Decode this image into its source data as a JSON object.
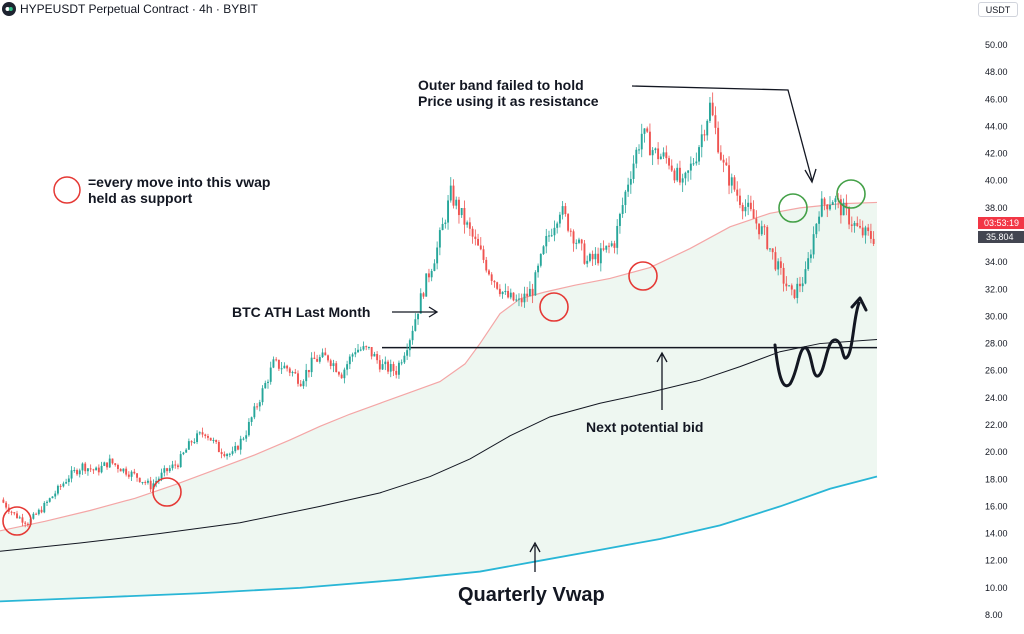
{
  "header": {
    "title": "HYPEUSDT Perpetual Contract · 4h · BYBIT",
    "currency": "USDT"
  },
  "price_tags": {
    "countdown": "03:53:19",
    "last_value": "35.804",
    "countdown_color": "#f23645",
    "last_color": "#434651"
  },
  "annotations": {
    "outer_band_line1": "Outer band failed to hold",
    "outer_band_line2": "Price using it as resistance",
    "legend_line1": "=every move into this vwap",
    "legend_line2": "held as support",
    "btc_ath": "BTC ATH Last Month",
    "next_bid": "Next potential bid",
    "quarterly_vwap": "Quarterly Vwap"
  },
  "colors": {
    "up": "#26a69a",
    "down": "#ef5350",
    "outer_band": "#f4a6a6",
    "vwap": "#131722",
    "quarterly_vwap": "#29b6d6",
    "band_fill": "#eef7f1",
    "support_circle": "#e53935",
    "resistance_circle": "#43a047",
    "level_line": "#131722"
  },
  "chart_data": {
    "type": "candlestick",
    "title": "HYPEUSDT Perpetual Contract · 4h · BYBIT",
    "ylim": [
      8,
      51
    ],
    "y_ticks": [
      8,
      10,
      12,
      14,
      16,
      18,
      20,
      22,
      24,
      26,
      28,
      30,
      32,
      34,
      36,
      38,
      40,
      42,
      44,
      46,
      48,
      50
    ],
    "grid": false,
    "horizontal_level": 27.7,
    "price_path": [
      16.5,
      15.4,
      14.8,
      15.8,
      17.0,
      18.2,
      19.0,
      18.6,
      19.3,
      18.7,
      18.2,
      17.5,
      18.5,
      19.2,
      20.8,
      21.5,
      20.2,
      19.8,
      21.5,
      24.0,
      26.5,
      26.2,
      25.3,
      26.8,
      27.0,
      25.8,
      27.6,
      27.5,
      26.3,
      26.0,
      28.5,
      32.0,
      35.0,
      39.0,
      37.0,
      35.0,
      33.0,
      31.5,
      31.0,
      32.0,
      35.5,
      38.0,
      36.0,
      34.0,
      34.5,
      35.5,
      40.0,
      43.5,
      42.0,
      41.5,
      39.5,
      42.0,
      45.5,
      41.0,
      39.0,
      37.5,
      36.0,
      33.5,
      31.5,
      33.0,
      38.0,
      38.7,
      37.5,
      36.2,
      35.8
    ],
    "series": [
      {
        "name": "",
        "points": [
          [
            0,
            14.2
          ],
          [
            45,
            14.9
          ],
          [
            90,
            15.7
          ],
          [
            135,
            16.6
          ],
          [
            175,
            17.6
          ],
          [
            215,
            18.7
          ],
          [
            255,
            19.8
          ],
          [
            290,
            20.9
          ],
          [
            320,
            21.9
          ],
          [
            350,
            22.8
          ],
          [
            380,
            23.6
          ],
          [
            410,
            24.4
          ],
          [
            440,
            25.2
          ],
          [
            465,
            26.5
          ],
          [
            480,
            28.0
          ],
          [
            500,
            30.2
          ],
          [
            520,
            31.3
          ],
          [
            545,
            31.8
          ],
          [
            575,
            32.3
          ],
          [
            610,
            32.8
          ],
          [
            650,
            33.6
          ],
          [
            690,
            35.0
          ],
          [
            730,
            36.6
          ],
          [
            770,
            37.6
          ],
          [
            800,
            38.0
          ],
          [
            840,
            38.3
          ],
          [
            877,
            38.4
          ]
        ]
      },
      {
        "name": "",
        "points": [
          [
            0,
            12.7
          ],
          [
            80,
            13.3
          ],
          [
            160,
            14.0
          ],
          [
            240,
            14.8
          ],
          [
            320,
            16.0
          ],
          [
            380,
            17.0
          ],
          [
            430,
            18.2
          ],
          [
            470,
            19.5
          ],
          [
            510,
            21.2
          ],
          [
            550,
            22.6
          ],
          [
            600,
            23.6
          ],
          [
            650,
            24.4
          ],
          [
            700,
            25.3
          ],
          [
            740,
            26.3
          ],
          [
            780,
            27.4
          ],
          [
            820,
            28.0
          ],
          [
            877,
            28.3
          ]
        ]
      },
      {
        "name": "",
        "points": [
          [
            0,
            9.0
          ],
          [
            100,
            9.3
          ],
          [
            200,
            9.6
          ],
          [
            300,
            10.0
          ],
          [
            400,
            10.6
          ],
          [
            480,
            11.2
          ],
          [
            540,
            12.0
          ],
          [
            600,
            12.8
          ],
          [
            660,
            13.6
          ],
          [
            720,
            14.6
          ],
          [
            780,
            16.0
          ],
          [
            830,
            17.3
          ],
          [
            877,
            18.2
          ]
        ]
      }
    ]
  }
}
